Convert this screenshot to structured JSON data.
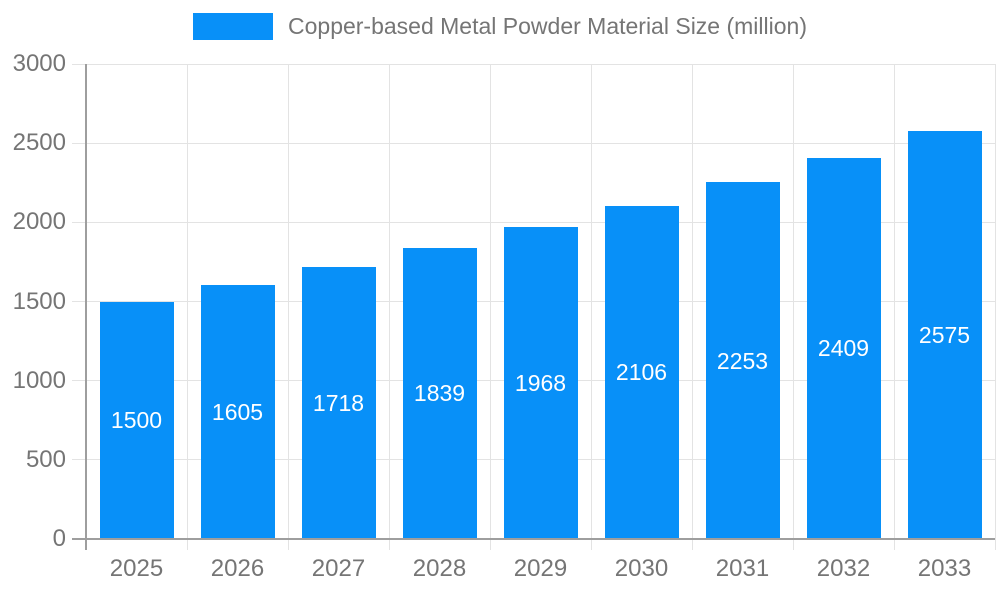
{
  "chart_data": {
    "type": "bar",
    "title": "Copper-based Metal Powder Material Size (million)",
    "categories": [
      "2025",
      "2026",
      "2027",
      "2028",
      "2029",
      "2030",
      "2031",
      "2032",
      "2033"
    ],
    "values": [
      1500,
      1605,
      1718,
      1839,
      1968,
      2106,
      2253,
      2409,
      2575
    ],
    "xlabel": "",
    "ylabel": "",
    "ylim": [
      0,
      3000
    ],
    "yticks": [
      0,
      500,
      1000,
      1500,
      2000,
      2500,
      3000
    ],
    "grid": true,
    "legend_position": "top-center",
    "value_labels": "inside-bar-center",
    "colors": {
      "bar": "#0890f8",
      "value_label": "#ffffff",
      "axis": "#9e9e9e",
      "grid": "#e3e3e3",
      "text": "#757575",
      "background": "#ffffff"
    }
  }
}
